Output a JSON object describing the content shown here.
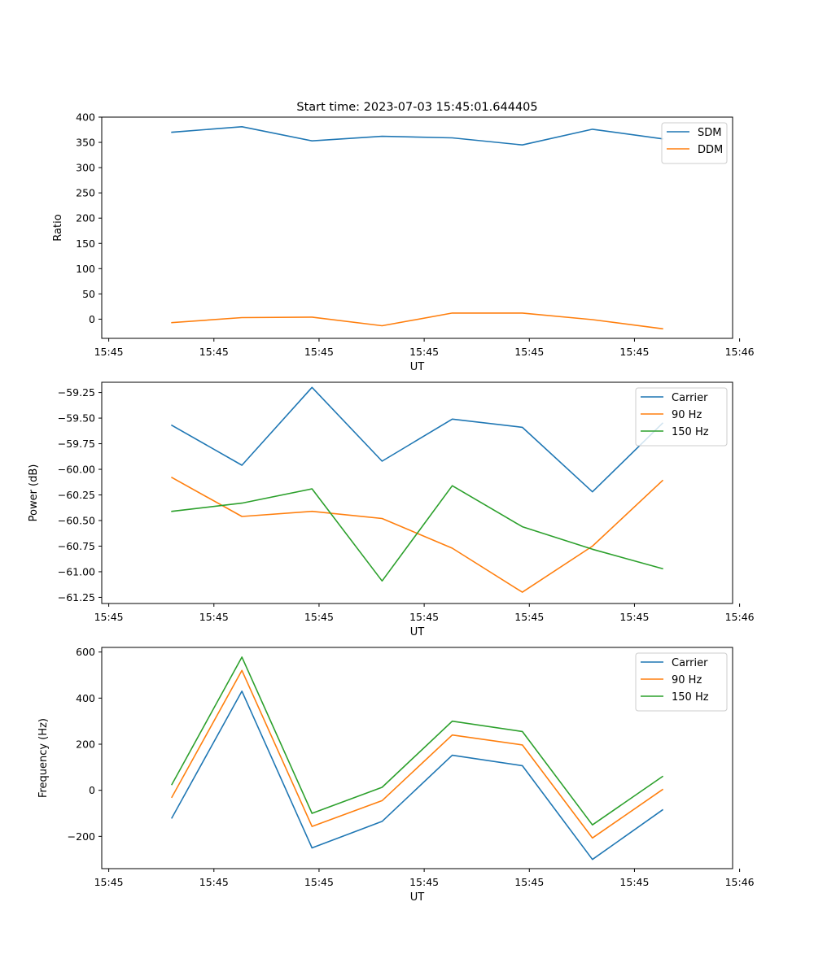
{
  "chart_data": [
    {
      "type": "line",
      "title": "Start time: 2023-07-03 15:45:01.644405",
      "xlabel": "UT",
      "ylabel": "Ratio",
      "xlim": [
        0,
        9
      ],
      "ylim": [
        -38,
        400
      ],
      "grid": false,
      "legend": "top-right",
      "x": [
        1,
        2,
        3,
        4,
        5,
        6,
        7,
        8
      ],
      "x_ticks": [
        {
          "value": 0.1,
          "label": "15:45"
        },
        {
          "value": 1.6,
          "label": "15:45"
        },
        {
          "value": 3.1,
          "label": "15:45"
        },
        {
          "value": 4.6,
          "label": "15:45"
        },
        {
          "value": 6.1,
          "label": "15:45"
        },
        {
          "value": 7.6,
          "label": "15:45"
        },
        {
          "value": 9.1,
          "label": "15:46"
        }
      ],
      "y_ticks": [
        {
          "value": 400,
          "label": "400"
        },
        {
          "value": 350,
          "label": "350"
        },
        {
          "value": 300,
          "label": "300"
        },
        {
          "value": 250,
          "label": "250"
        },
        {
          "value": 200,
          "label": "200"
        },
        {
          "value": 150,
          "label": "150"
        },
        {
          "value": 100,
          "label": "100"
        },
        {
          "value": 50,
          "label": "50"
        },
        {
          "value": 0,
          "label": "0"
        }
      ],
      "series": [
        {
          "name": "SDM",
          "color": "#1f77b4",
          "values": [
            370,
            381,
            353,
            362,
            359,
            345,
            376,
            357
          ]
        },
        {
          "name": "DDM",
          "color": "#ff7f0e",
          "values": [
            -7,
            3,
            4,
            -13,
            12,
            12,
            -1,
            -19
          ]
        }
      ]
    },
    {
      "type": "line",
      "title": "",
      "xlabel": "UT",
      "ylabel": "Power (dB)",
      "xlim": [
        0,
        9
      ],
      "ylim": [
        -61.31,
        -59.15
      ],
      "grid": false,
      "legend": "top-right",
      "x": [
        1,
        2,
        3,
        4,
        5,
        6,
        7,
        8
      ],
      "x_ticks": [
        {
          "value": 0.1,
          "label": "15:45"
        },
        {
          "value": 1.6,
          "label": "15:45"
        },
        {
          "value": 3.1,
          "label": "15:45"
        },
        {
          "value": 4.6,
          "label": "15:45"
        },
        {
          "value": 6.1,
          "label": "15:45"
        },
        {
          "value": 7.6,
          "label": "15:45"
        },
        {
          "value": 9.1,
          "label": "15:46"
        }
      ],
      "y_ticks": [
        {
          "value": -59.25,
          "label": "−59.25"
        },
        {
          "value": -59.5,
          "label": "−59.50"
        },
        {
          "value": -59.75,
          "label": "−59.75"
        },
        {
          "value": -60.0,
          "label": "−60.00"
        },
        {
          "value": -60.25,
          "label": "−60.25"
        },
        {
          "value": -60.5,
          "label": "−60.50"
        },
        {
          "value": -60.75,
          "label": "−60.75"
        },
        {
          "value": -61.0,
          "label": "−61.00"
        },
        {
          "value": -61.25,
          "label": "−61.25"
        }
      ],
      "series": [
        {
          "name": "Carrier",
          "color": "#1f77b4",
          "values": [
            -59.57,
            -59.96,
            -59.2,
            -59.92,
            -59.51,
            -59.59,
            -60.22,
            -59.55
          ]
        },
        {
          "name": "90 Hz",
          "color": "#ff7f0e",
          "values": [
            -60.08,
            -60.46,
            -60.41,
            -60.48,
            -60.77,
            -61.2,
            -60.75,
            -60.11
          ]
        },
        {
          "name": "150 Hz",
          "color": "#2ca02c",
          "values": [
            -60.41,
            -60.33,
            -60.19,
            -61.09,
            -60.16,
            -60.56,
            -60.78,
            -60.97
          ]
        }
      ]
    },
    {
      "type": "line",
      "title": "",
      "xlabel": "UT",
      "ylabel": "Frequency (Hz)",
      "xlim": [
        0,
        9
      ],
      "ylim": [
        -340,
        620
      ],
      "grid": false,
      "legend": "top-right",
      "x": [
        1,
        2,
        3,
        4,
        5,
        6,
        7,
        8
      ],
      "x_ticks": [
        {
          "value": 0.1,
          "label": "15:45"
        },
        {
          "value": 1.6,
          "label": "15:45"
        },
        {
          "value": 3.1,
          "label": "15:45"
        },
        {
          "value": 4.6,
          "label": "15:45"
        },
        {
          "value": 6.1,
          "label": "15:45"
        },
        {
          "value": 7.6,
          "label": "15:45"
        },
        {
          "value": 9.1,
          "label": "15:46"
        }
      ],
      "y_ticks": [
        {
          "value": 600,
          "label": "600"
        },
        {
          "value": 400,
          "label": "400"
        },
        {
          "value": 200,
          "label": "200"
        },
        {
          "value": 0,
          "label": "0"
        },
        {
          "value": -200,
          "label": "−200"
        }
      ],
      "series": [
        {
          "name": "Carrier",
          "color": "#1f77b4",
          "values": [
            -120,
            430,
            -250,
            -135,
            152,
            107,
            -300,
            -85
          ]
        },
        {
          "name": "90 Hz",
          "color": "#ff7f0e",
          "values": [
            -30,
            520,
            -157,
            -45,
            240,
            197,
            -207,
            3
          ]
        },
        {
          "name": "150 Hz",
          "color": "#2ca02c",
          "values": [
            25,
            578,
            -100,
            13,
            300,
            255,
            -150,
            60
          ]
        }
      ]
    }
  ]
}
